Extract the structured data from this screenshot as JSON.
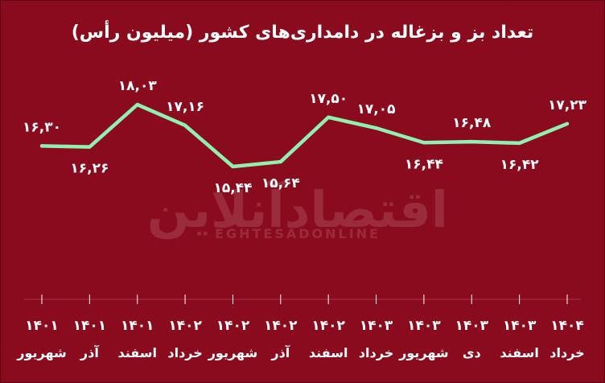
{
  "chart_data": {
    "type": "line",
    "title": "تعداد بز و بزغاله در دامداری‌های کشور (میلیون رأس)",
    "xlabel": "",
    "ylabel": "",
    "categories": [
      {
        "month": "شهریور",
        "year": "۱۴۰۱"
      },
      {
        "month": "آذر",
        "year": "۱۴۰۱"
      },
      {
        "month": "اسفند",
        "year": "۱۴۰۱"
      },
      {
        "month": "خرداد",
        "year": "۱۴۰۲"
      },
      {
        "month": "شهریور",
        "year": "۱۴۰۲"
      },
      {
        "month": "آذر",
        "year": "۱۴۰۲"
      },
      {
        "month": "اسفند",
        "year": "۱۴۰۲"
      },
      {
        "month": "خرداد",
        "year": "۱۴۰۳"
      },
      {
        "month": "شهریور",
        "year": "۱۴۰۳"
      },
      {
        "month": "دی",
        "year": "۱۴۰۳"
      },
      {
        "month": "اسفند",
        "year": "۱۴۰۳"
      },
      {
        "month": "خرداد",
        "year": "۱۴۰۴"
      }
    ],
    "values": [
      16.3,
      16.26,
      18.03,
      17.16,
      15.44,
      15.64,
      17.5,
      17.05,
      16.44,
      16.48,
      16.42,
      17.23
    ],
    "labels": [
      "۱۶,۳۰",
      "۱۶,۲۶",
      "۱۸,۰۳",
      "۱۷,۱۶",
      "۱۵,۴۴",
      "۱۵,۶۴",
      "۱۷,۵۰",
      "۱۷,۰۵",
      "۱۶,۴۴",
      "۱۶,۴۸",
      "۱۶,۴۲",
      "۱۷,۲۳"
    ],
    "label_positions": [
      "above",
      "below",
      "above",
      "above",
      "below",
      "below",
      "above",
      "above",
      "below",
      "above",
      "below",
      "above"
    ],
    "ylim": [
      14.5,
      18.5
    ],
    "grid": false,
    "line_color": "#8ff0b0",
    "background_color": "#8b0b1e"
  },
  "watermark": {
    "main": "اقتصادآنلاین",
    "sub": "EGHTESADONLINE"
  }
}
